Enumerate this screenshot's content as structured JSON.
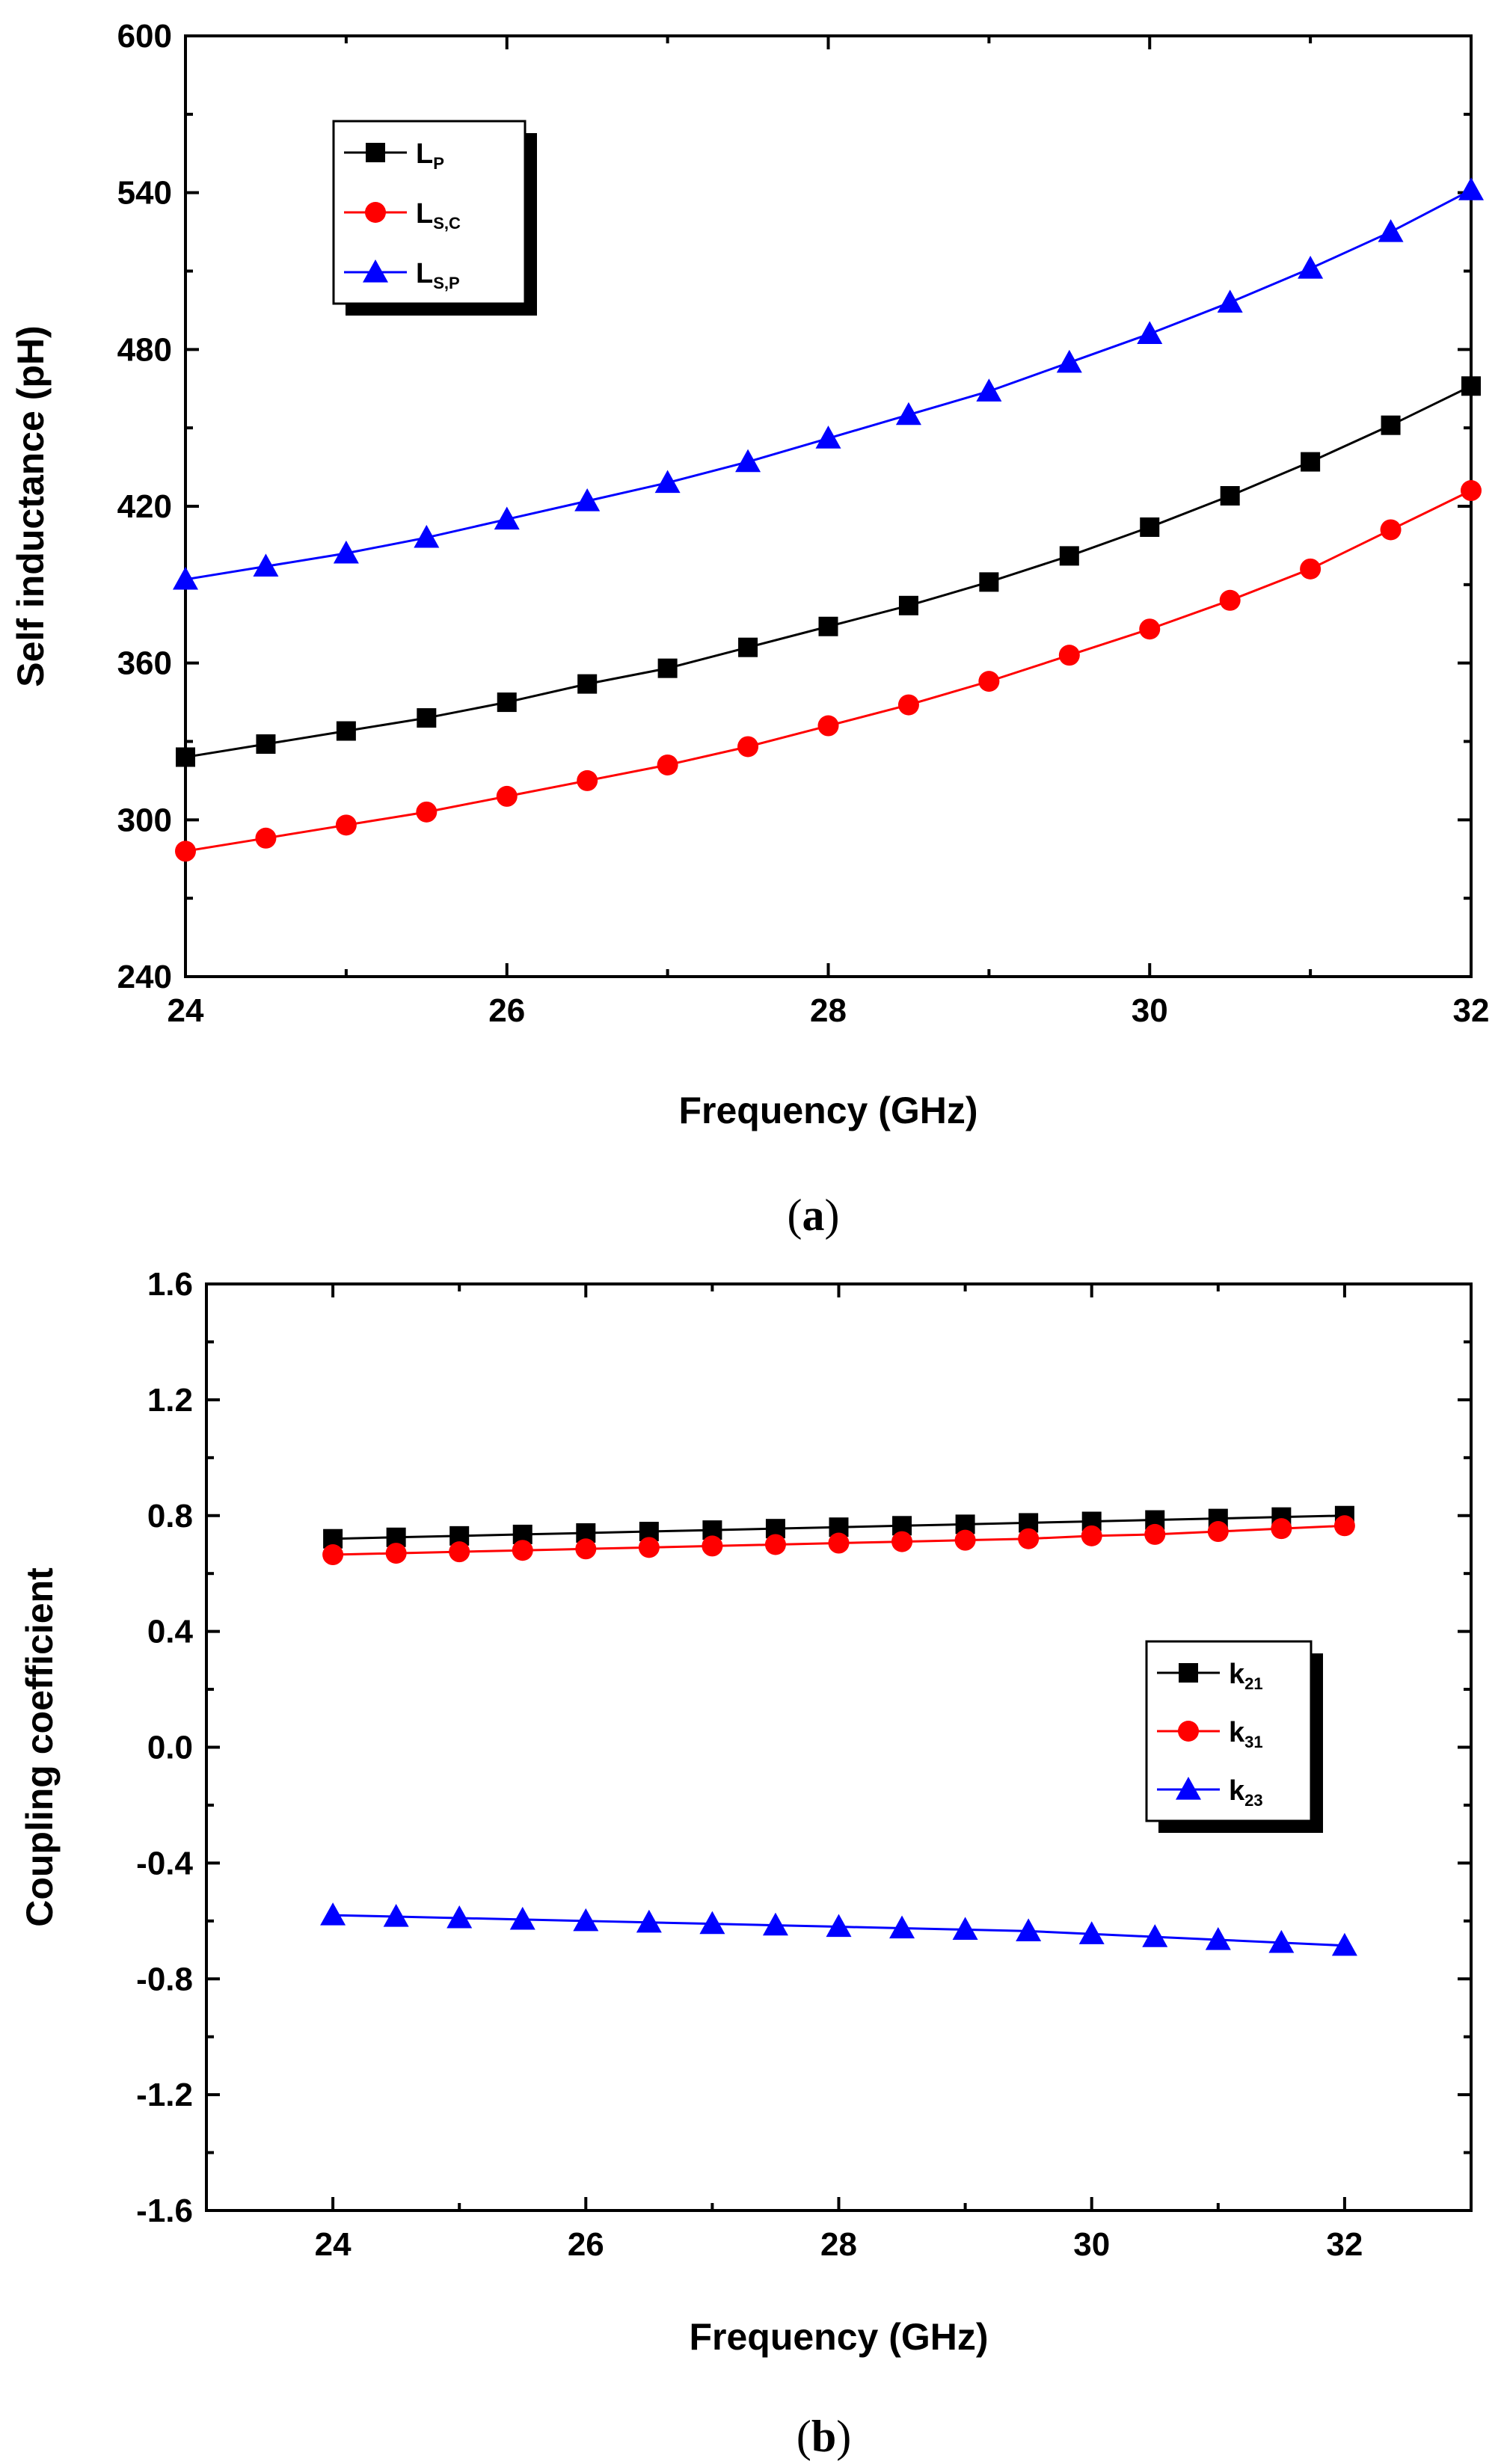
{
  "chart_data": [
    {
      "type": "line",
      "panel_label": "a",
      "title": "",
      "xlabel": "Frequency (GHz)",
      "ylabel": "Self inductance (pH)",
      "xlim": [
        24,
        32
      ],
      "ylim": [
        240,
        600
      ],
      "xticks": [
        "24",
        "26",
        "28",
        "30",
        "32"
      ],
      "yticks": [
        "240",
        "300",
        "360",
        "420",
        "480",
        "540",
        "600"
      ],
      "legend_position": "top-left",
      "x": [
        24,
        24.5,
        25,
        25.5,
        26,
        26.5,
        27,
        27.5,
        28,
        28.5,
        29,
        29.5,
        30,
        30.5,
        31,
        31.5,
        32
      ],
      "series": [
        {
          "name": "L",
          "sub": "P",
          "color": "#000000",
          "marker": "square",
          "values": [
            324,
            329,
            334,
            339,
            345,
            352,
            358,
            366,
            374,
            382,
            391,
            401,
            412,
            424,
            437,
            451,
            466
          ]
        },
        {
          "name": "L",
          "sub": "S,C",
          "color": "#ff0000",
          "marker": "circle",
          "values": [
            288,
            293,
            298,
            303,
            309,
            315,
            321,
            328,
            336,
            344,
            353,
            363,
            373,
            384,
            396,
            411,
            426
          ]
        },
        {
          "name": "L",
          "sub": "S,P",
          "color": "#0000ff",
          "marker": "triangle",
          "values": [
            392,
            397,
            402,
            408,
            415,
            422,
            429,
            437,
            446,
            455,
            464,
            475,
            486,
            498,
            511,
            525,
            541
          ]
        }
      ]
    },
    {
      "type": "line",
      "panel_label": "b",
      "title": "",
      "xlabel": "Frequency (GHz)",
      "ylabel": "Coupling coefficient",
      "xlim": [
        23,
        33
      ],
      "ylim": [
        -1.6,
        1.6
      ],
      "xticks": [
        "24",
        "26",
        "28",
        "30",
        "32"
      ],
      "yticks": [
        "-1.6",
        "-1.2",
        "-0.8",
        "-0.4",
        "0.0",
        "0.4",
        "0.8",
        "1.2",
        "1.6"
      ],
      "legend_position": "middle-right",
      "x": [
        24,
        24.5,
        25,
        25.5,
        26,
        26.5,
        27,
        27.5,
        28,
        28.5,
        29,
        29.5,
        30,
        30.5,
        31,
        31.5,
        32
      ],
      "series": [
        {
          "name": "k",
          "sub": "21",
          "color": "#000000",
          "marker": "square",
          "values": [
            0.72,
            0.725,
            0.73,
            0.735,
            0.74,
            0.745,
            0.75,
            0.755,
            0.76,
            0.765,
            0.77,
            0.775,
            0.78,
            0.785,
            0.79,
            0.795,
            0.8
          ]
        },
        {
          "name": "k",
          "sub": "31",
          "color": "#ff0000",
          "marker": "circle",
          "values": [
            0.665,
            0.67,
            0.675,
            0.68,
            0.685,
            0.69,
            0.695,
            0.7,
            0.705,
            0.71,
            0.715,
            0.72,
            0.73,
            0.735,
            0.745,
            0.755,
            0.765
          ]
        },
        {
          "name": "k",
          "sub": "23",
          "color": "#0000ff",
          "marker": "triangle",
          "values": [
            -0.58,
            -0.585,
            -0.59,
            -0.595,
            -0.6,
            -0.605,
            -0.61,
            -0.615,
            -0.62,
            -0.625,
            -0.63,
            -0.635,
            -0.645,
            -0.655,
            -0.665,
            -0.675,
            -0.685
          ]
        }
      ]
    }
  ]
}
